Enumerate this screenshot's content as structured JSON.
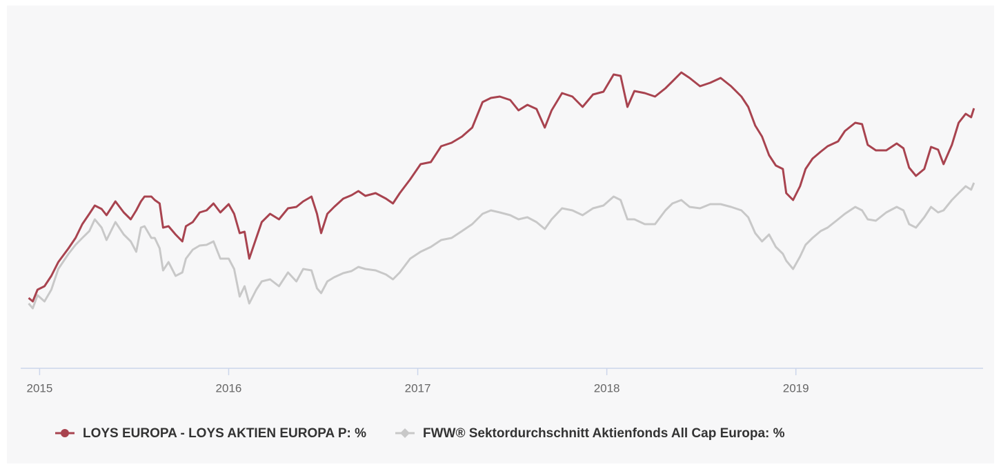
{
  "chart_data": {
    "type": "line",
    "x": [
      2014.942,
      2014.964,
      2014.989,
      2015.026,
      2015.062,
      2015.099,
      2015.153,
      2015.19,
      2015.226,
      2015.263,
      2015.292,
      2015.328,
      2015.354,
      2015.401,
      2015.445,
      2015.482,
      2015.511,
      2015.536,
      2015.555,
      2015.591,
      2015.609,
      2015.635,
      2015.653,
      2015.682,
      2015.719,
      2015.755,
      2015.774,
      2015.81,
      2015.847,
      2015.883,
      2015.92,
      2015.956,
      2016.0,
      2016.029,
      2016.058,
      2016.084,
      2016.109,
      2016.146,
      2016.175,
      2016.219,
      2016.266,
      2016.314,
      2016.358,
      2016.394,
      2016.438,
      2016.467,
      2016.489,
      2016.522,
      2016.558,
      2016.606,
      2016.65,
      2016.686,
      2016.723,
      2016.777,
      2016.832,
      2016.869,
      2016.905,
      2016.96,
      2017.015,
      2017.069,
      2017.124,
      2017.179,
      2017.234,
      2017.288,
      2017.343,
      2017.387,
      2017.434,
      2017.489,
      2017.533,
      2017.58,
      2017.628,
      2017.672,
      2017.708,
      2017.763,
      2017.818,
      2017.872,
      2017.927,
      2017.982,
      2018.036,
      2018.073,
      2018.109,
      2018.146,
      2018.201,
      2018.255,
      2018.31,
      2018.347,
      2018.394,
      2018.438,
      2018.493,
      2018.547,
      2018.602,
      2018.657,
      2018.712,
      2018.748,
      2018.785,
      2018.821,
      2018.858,
      2018.894,
      2018.931,
      2018.949,
      2018.985,
      2019.022,
      2019.051,
      2019.088,
      2019.131,
      2019.168,
      2019.223,
      2019.259,
      2019.314,
      2019.35,
      2019.38,
      2019.423,
      2019.478,
      2019.533,
      2019.569,
      2019.599,
      2019.635,
      2019.679,
      2019.715,
      2019.752,
      2019.781,
      2019.825,
      2019.861,
      2019.898,
      2019.927,
      2019.942
    ],
    "series": [
      {
        "name": "LOYS EUROPA - LOYS AKTIEN EUROPA P: %",
        "color": "#a8434f",
        "marker": "circle",
        "values": [
          0.6,
          -0.4,
          3,
          4,
          7,
          11,
          15,
          18,
          22,
          25,
          27.4,
          26.4,
          24.6,
          28.6,
          25.4,
          23.4,
          26,
          28.6,
          30,
          30,
          29,
          28,
          21,
          21.4,
          19,
          17,
          21.4,
          22.6,
          25.4,
          26,
          28,
          25.4,
          27.8,
          25,
          19.4,
          19.8,
          12,
          18,
          22.6,
          25,
          23.4,
          26.6,
          27,
          28.6,
          30,
          25,
          19.4,
          25,
          27,
          29.4,
          30.4,
          31.6,
          30.2,
          31,
          29.4,
          28,
          31,
          35,
          39.4,
          40,
          44.6,
          45.6,
          47.4,
          50,
          57.4,
          58.6,
          59,
          58,
          55,
          56.6,
          55.4,
          50,
          55,
          60,
          59,
          56,
          59.6,
          60.4,
          65.4,
          65,
          56,
          60.6,
          60,
          59,
          61.4,
          63.4,
          66,
          64.4,
          62,
          63,
          64.4,
          62,
          59,
          56,
          50.6,
          47.4,
          42,
          39,
          38,
          31,
          29,
          33,
          38,
          41,
          43,
          44.6,
          46,
          49,
          51.4,
          51,
          45,
          43.4,
          43.4,
          45.4,
          44,
          38.4,
          36,
          38,
          44.4,
          43.6,
          39.4,
          45,
          51.4,
          54,
          53,
          55.6
        ]
      },
      {
        "name": "FWW® Sektordurchschnitt Aktienfonds All Cap Europa: %",
        "color": "#c8c8c8",
        "marker": "diamond",
        "values": [
          -1,
          -2.4,
          1.4,
          -0.4,
          3,
          9,
          13.4,
          16,
          18,
          20,
          23.4,
          21,
          17.4,
          22.6,
          19,
          17,
          14,
          21,
          21.4,
          18,
          18,
          15,
          8.6,
          11,
          7,
          8,
          12,
          14.6,
          15.8,
          16,
          17,
          12,
          12,
          9,
          1,
          4,
          -1,
          3,
          5.4,
          6,
          4,
          8,
          5.4,
          9,
          8.6,
          3.4,
          2,
          5.4,
          6.6,
          7.8,
          8.4,
          9.6,
          9,
          8.6,
          7.4,
          6,
          8,
          12,
          14,
          15.4,
          17.4,
          18,
          20,
          22,
          25,
          26,
          25.4,
          24.6,
          23.4,
          24,
          22.6,
          20.6,
          23.4,
          26.6,
          26,
          24.6,
          26.6,
          27.4,
          30,
          29,
          23.4,
          23.4,
          22,
          22,
          26,
          28,
          29,
          27,
          26.6,
          27.8,
          27.8,
          27,
          26,
          24,
          19.4,
          17,
          19,
          15.4,
          13.4,
          11.4,
          9,
          12.6,
          16,
          18,
          20,
          21,
          23.4,
          25,
          27,
          26,
          23.4,
          23,
          25.4,
          27,
          26,
          22,
          21,
          24,
          27,
          25.4,
          26,
          29,
          31,
          33,
          32,
          34
        ]
      }
    ],
    "xlim": [
      2014.9,
      2019.99
    ],
    "xticks": [
      2015,
      2016,
      2017,
      2018,
      2019
    ],
    "ylim": [
      -20,
      70
    ],
    "grid": false,
    "legend": "bottom"
  }
}
